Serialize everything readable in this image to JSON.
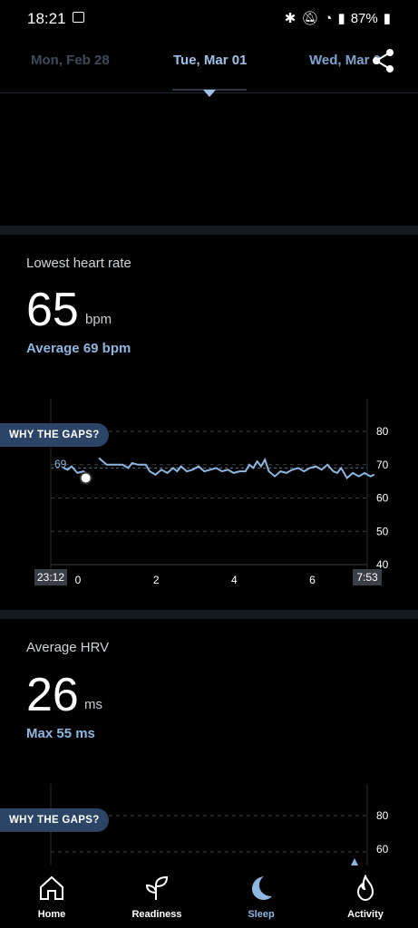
{
  "status_bar": {
    "time": "18:21",
    "battery": "87%"
  },
  "date_nav": {
    "prev": "Mon, Feb 28",
    "current": "Tue, Mar 01",
    "next": "Wed, Mar 0"
  },
  "heart_card": {
    "title": "Lowest heart rate",
    "value": "65",
    "unit": "bpm",
    "average": "Average 69 bpm",
    "gaps_button": "WHY THE GAPS?",
    "avg_label": "69",
    "start_time": "23:12",
    "end_time": "7:53",
    "x_ticks": [
      "0",
      "2",
      "4",
      "6"
    ],
    "y_ticks": [
      "80",
      "70",
      "60",
      "50",
      "40"
    ]
  },
  "hrv_card": {
    "title": "Average HRV",
    "value": "26",
    "unit": "ms",
    "max": "Max 55 ms",
    "gaps_button": "WHY THE GAPS?",
    "y_ticks": [
      "80",
      "60"
    ]
  },
  "chart_data": {
    "type": "line",
    "ylim": [
      40,
      80
    ],
    "x_start": "23:12",
    "x_end": "7:53",
    "average": 69,
    "segments": [
      [
        [
          0.1,
          69
        ],
        [
          0.2,
          68.5
        ],
        [
          0.3,
          69.5
        ],
        [
          0.45,
          67.5
        ],
        [
          0.6,
          68
        ],
        [
          0.75,
          67
        ]
      ],
      [
        [
          1.0,
          72
        ],
        [
          1.1,
          71
        ],
        [
          1.2,
          70
        ],
        [
          1.4,
          70
        ],
        [
          1.6,
          70
        ],
        [
          1.75,
          69
        ],
        [
          1.85,
          70.5
        ],
        [
          2.0,
          70
        ],
        [
          2.2,
          70
        ],
        [
          2.3,
          68
        ],
        [
          2.45,
          67
        ],
        [
          2.6,
          68.5
        ],
        [
          2.75,
          67.5
        ],
        [
          2.9,
          69
        ],
        [
          3.0,
          68
        ],
        [
          3.1,
          69.5
        ],
        [
          3.25,
          68
        ],
        [
          3.4,
          68.5
        ],
        [
          3.55,
          69.5
        ],
        [
          3.7,
          68
        ],
        [
          3.85,
          68.5
        ],
        [
          4.0,
          69
        ],
        [
          4.15,
          68
        ],
        [
          4.3,
          68.5
        ],
        [
          4.45,
          67.5
        ],
        [
          4.6,
          68
        ],
        [
          4.75,
          68
        ],
        [
          4.85,
          70
        ],
        [
          4.95,
          69
        ],
        [
          5.05,
          71
        ],
        [
          5.15,
          69.5
        ],
        [
          5.25,
          71.5
        ],
        [
          5.35,
          68
        ],
        [
          5.5,
          66.5
        ],
        [
          5.65,
          68
        ],
        [
          5.8,
          67.5
        ],
        [
          5.95,
          68.5
        ],
        [
          6.1,
          69
        ],
        [
          6.25,
          68
        ],
        [
          6.4,
          69
        ],
        [
          6.55,
          69.5
        ],
        [
          6.7,
          68.5
        ],
        [
          6.85,
          70
        ],
        [
          7.0,
          68
        ],
        [
          7.1,
          67.5
        ],
        [
          7.2,
          69
        ],
        [
          7.35,
          66
        ],
        [
          7.5,
          67.5
        ],
        [
          7.65,
          66.5
        ],
        [
          7.8,
          67.5
        ],
        [
          7.95,
          66.5
        ],
        [
          8.05,
          67
        ]
      ]
    ],
    "point": [
      0.2,
      66
    ]
  },
  "colors": {
    "accent": "#8fb5e0",
    "line": "#8fb5e0",
    "button": "#2c4466"
  },
  "nav": {
    "home": "Home",
    "readiness": "Readiness",
    "sleep": "Sleep",
    "activity": "Activity"
  }
}
